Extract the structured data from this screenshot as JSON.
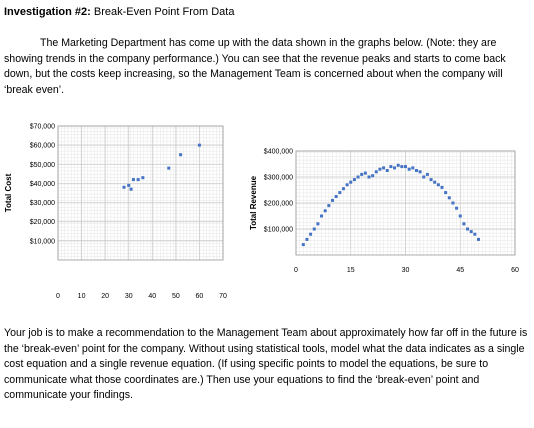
{
  "header": {
    "label": "Investigation #2:",
    "title": "Break-Even Point From Data"
  },
  "intro": "The Marketing Department has come up with the data shown in the graphs below. (Note: they are showing trends in the company performance.) You can see that the revenue peaks and starts to come back down, but the costs keep increasing, so the Management Team is concerned about when the company will ‘break even’.",
  "closing": "Your job is to make a recommendation to the Management Team about approximately how far off in the future is the ‘break-even’ point for the company. Without using statistical tools, model what the data indicates as a single cost equation and a single revenue equation. (If using specific points to model the equations, be sure to communicate what those coordinates are.) Then use your equations to find the ‘break-even’ point and communicate your findings.",
  "chart_data": [
    {
      "type": "scatter",
      "title": "",
      "xlabel": "",
      "ylabel": "Total Cost",
      "xlim": [
        0,
        70
      ],
      "ylim": [
        0,
        70000
      ],
      "x_ticks": [
        "0",
        "10",
        "20",
        "30",
        "40",
        "50",
        "60",
        "70"
      ],
      "y_ticks": [
        "$10,000",
        "$20,000",
        "$30,000",
        "$40,000",
        "$50,000",
        "$60,000",
        "$70,000"
      ],
      "grid": true,
      "marker_color": "#4472c4",
      "points": [
        {
          "x": 28,
          "y": 38000
        },
        {
          "x": 30,
          "y": 39000
        },
        {
          "x": 31,
          "y": 37000
        },
        {
          "x": 32,
          "y": 42000
        },
        {
          "x": 34,
          "y": 42000
        },
        {
          "x": 36,
          "y": 43000
        },
        {
          "x": 47,
          "y": 48000
        },
        {
          "x": 52,
          "y": 55000
        },
        {
          "x": 60,
          "y": 60000
        }
      ]
    },
    {
      "type": "scatter",
      "title": "",
      "xlabel": "",
      "ylabel": "Total Revenue",
      "xlim": [
        0,
        60
      ],
      "ylim": [
        0,
        400000
      ],
      "x_ticks": [
        "0",
        "15",
        "30",
        "45",
        "60"
      ],
      "y_ticks": [
        "$100,000",
        "$200,000",
        "$300,000",
        "$400,000"
      ],
      "grid": true,
      "marker_color": "#4472c4",
      "points": [
        {
          "x": 2,
          "y": 40000
        },
        {
          "x": 3,
          "y": 60000
        },
        {
          "x": 4,
          "y": 80000
        },
        {
          "x": 5,
          "y": 100000
        },
        {
          "x": 6,
          "y": 120000
        },
        {
          "x": 7,
          "y": 150000
        },
        {
          "x": 8,
          "y": 170000
        },
        {
          "x": 9,
          "y": 190000
        },
        {
          "x": 10,
          "y": 210000
        },
        {
          "x": 11,
          "y": 225000
        },
        {
          "x": 12,
          "y": 240000
        },
        {
          "x": 13,
          "y": 255000
        },
        {
          "x": 14,
          "y": 270000
        },
        {
          "x": 15,
          "y": 280000
        },
        {
          "x": 16,
          "y": 290000
        },
        {
          "x": 17,
          "y": 300000
        },
        {
          "x": 18,
          "y": 310000
        },
        {
          "x": 19,
          "y": 315000
        },
        {
          "x": 20,
          "y": 300000
        },
        {
          "x": 21,
          "y": 305000
        },
        {
          "x": 22,
          "y": 320000
        },
        {
          "x": 23,
          "y": 330000
        },
        {
          "x": 24,
          "y": 335000
        },
        {
          "x": 25,
          "y": 325000
        },
        {
          "x": 26,
          "y": 340000
        },
        {
          "x": 27,
          "y": 335000
        },
        {
          "x": 28,
          "y": 345000
        },
        {
          "x": 29,
          "y": 340000
        },
        {
          "x": 30,
          "y": 340000
        },
        {
          "x": 31,
          "y": 330000
        },
        {
          "x": 32,
          "y": 335000
        },
        {
          "x": 33,
          "y": 325000
        },
        {
          "x": 34,
          "y": 320000
        },
        {
          "x": 35,
          "y": 300000
        },
        {
          "x": 36,
          "y": 310000
        },
        {
          "x": 37,
          "y": 290000
        },
        {
          "x": 38,
          "y": 280000
        },
        {
          "x": 39,
          "y": 270000
        },
        {
          "x": 40,
          "y": 260000
        },
        {
          "x": 41,
          "y": 240000
        },
        {
          "x": 42,
          "y": 220000
        },
        {
          "x": 43,
          "y": 200000
        },
        {
          "x": 44,
          "y": 180000
        },
        {
          "x": 45,
          "y": 150000
        },
        {
          "x": 46,
          "y": 120000
        },
        {
          "x": 47,
          "y": 100000
        },
        {
          "x": 48,
          "y": 90000
        },
        {
          "x": 49,
          "y": 80000
        },
        {
          "x": 50,
          "y": 60000
        }
      ]
    }
  ]
}
